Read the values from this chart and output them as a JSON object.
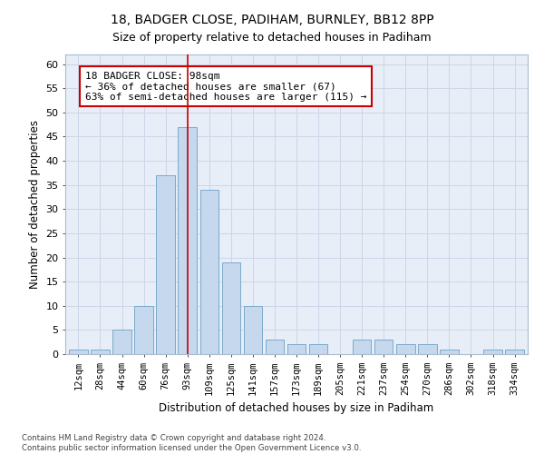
{
  "title": "18, BADGER CLOSE, PADIHAM, BURNLEY, BB12 8PP",
  "subtitle": "Size of property relative to detached houses in Padiham",
  "xlabel": "Distribution of detached houses by size in Padiham",
  "ylabel": "Number of detached properties",
  "bar_labels": [
    "12sqm",
    "28sqm",
    "44sqm",
    "60sqm",
    "76sqm",
    "93sqm",
    "109sqm",
    "125sqm",
    "141sqm",
    "157sqm",
    "173sqm",
    "189sqm",
    "205sqm",
    "221sqm",
    "237sqm",
    "254sqm",
    "270sqm",
    "286sqm",
    "302sqm",
    "318sqm",
    "334sqm"
  ],
  "bar_values": [
    1,
    1,
    5,
    10,
    37,
    47,
    34,
    19,
    10,
    3,
    2,
    2,
    0,
    3,
    3,
    2,
    2,
    1,
    0,
    1,
    1
  ],
  "bar_color": "#c5d8ee",
  "bar_edge_color": "#7aaaca",
  "grid_color": "#ccd6e8",
  "background_color": "#e8eef7",
  "vline_x_index": 5,
  "vline_color": "#cc0000",
  "annotation_text": "18 BADGER CLOSE: 98sqm\n← 36% of detached houses are smaller (67)\n63% of semi-detached houses are larger (115) →",
  "annotation_box_color": "#ffffff",
  "annotation_box_edge": "#cc0000",
  "ylim": [
    0,
    62
  ],
  "yticks": [
    0,
    5,
    10,
    15,
    20,
    25,
    30,
    35,
    40,
    45,
    50,
    55,
    60
  ],
  "footer_line1": "Contains HM Land Registry data © Crown copyright and database right 2024.",
  "footer_line2": "Contains public sector information licensed under the Open Government Licence v3.0.",
  "title_fontsize": 10,
  "subtitle_fontsize": 9
}
